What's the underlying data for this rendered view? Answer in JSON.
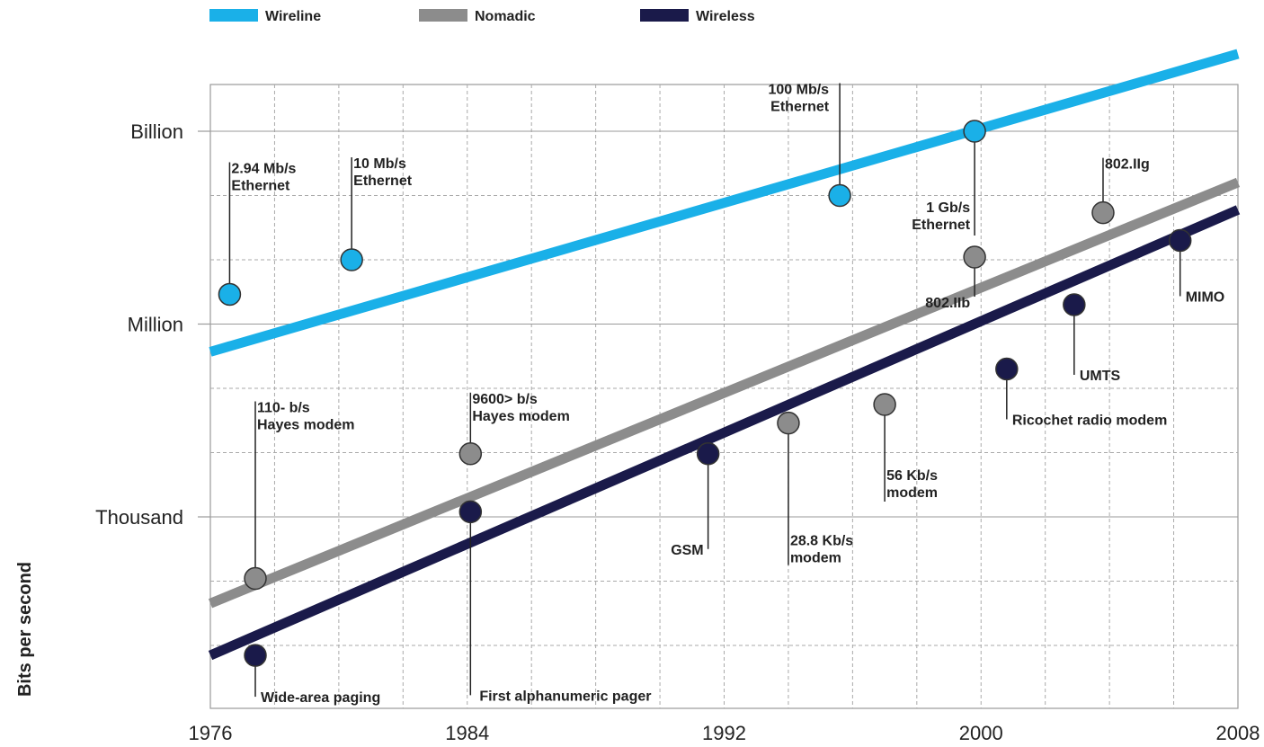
{
  "chart_data": {
    "type": "scatter",
    "title": "",
    "xlabel": "",
    "ylabel": "Bits per second",
    "xlim": [
      1976,
      2008
    ],
    "ylim_log10": [
      0,
      12
    ],
    "log_scale_y": true,
    "grid": true,
    "legend_position": "top-left",
    "x_ticks": [
      "1976",
      "1984",
      "1992",
      "2000",
      "2008"
    ],
    "x_tick_values": [
      1976,
      1984,
      1992,
      2000,
      2008
    ],
    "y_ticks": [
      "Thousand",
      "Million",
      "Billion"
    ],
    "y_tick_values": [
      1000,
      1000000,
      1000000000
    ],
    "series": [
      {
        "name": "Wireline",
        "color": "#1ab0e8",
        "trend": [
          [
            1976,
            370000.0
          ],
          [
            2008,
            16000000000.0
          ]
        ],
        "points": [
          {
            "x": 1976.6,
            "y": 2900000.0,
            "label": [
              "2.94 Mb/s",
              "Ethernet"
            ]
          },
          {
            "x": 1980.4,
            "y": 10000000.0,
            "label": [
              "10 Mb/s",
              "Ethernet"
            ]
          },
          {
            "x": 1995.6,
            "y": 100000000.0,
            "label": [
              "100 Mb/s",
              "Ethernet"
            ]
          },
          {
            "x": 1999.8,
            "y": 1000000000.0,
            "label": [
              "1 Gb/s",
              "Ethernet"
            ]
          }
        ]
      },
      {
        "name": "Nomadic",
        "color": "#8c8c8c",
        "trend": [
          [
            1976,
            45
          ],
          [
            2008,
            160000000.0
          ]
        ],
        "points": [
          {
            "x": 1977.4,
            "y": 110,
            "label": [
              "110- b/s",
              "Hayes modem"
            ]
          },
          {
            "x": 1984.1,
            "y": 9600,
            "label": [
              "9600> b/s",
              "Hayes modem"
            ]
          },
          {
            "x": 1994.0,
            "y": 28800,
            "label": [
              "28.8 Kb/s",
              "modem"
            ]
          },
          {
            "x": 1997.0,
            "y": 56000,
            "label": [
              "56 Kb/s",
              "modem"
            ]
          },
          {
            "x": 1999.8,
            "y": 11000000.0,
            "label": [
              "802.IIb"
            ]
          },
          {
            "x": 2003.8,
            "y": 54000000.0,
            "label": [
              "802.IIg"
            ]
          }
        ]
      },
      {
        "name": "Wireless",
        "color": "#1a1a4a",
        "trend": [
          [
            1976,
            7
          ],
          [
            2008,
            60000000.0
          ]
        ],
        "points": [
          {
            "x": 1977.4,
            "y": 7,
            "label": [
              "Wide-area paging"
            ]
          },
          {
            "x": 1984.1,
            "y": 1200,
            "label": [
              "First alphanumeric pager"
            ]
          },
          {
            "x": 1991.5,
            "y": 9600,
            "label": [
              "GSM"
            ]
          },
          {
            "x": 2000.8,
            "y": 200000.0,
            "label": [
              "Ricochet radio modem"
            ]
          },
          {
            "x": 2002.9,
            "y": 2000000.0,
            "label": [
              "UMTS"
            ]
          },
          {
            "x": 2006.2,
            "y": 20000000.0,
            "label": [
              "MIMO"
            ]
          }
        ]
      }
    ]
  }
}
